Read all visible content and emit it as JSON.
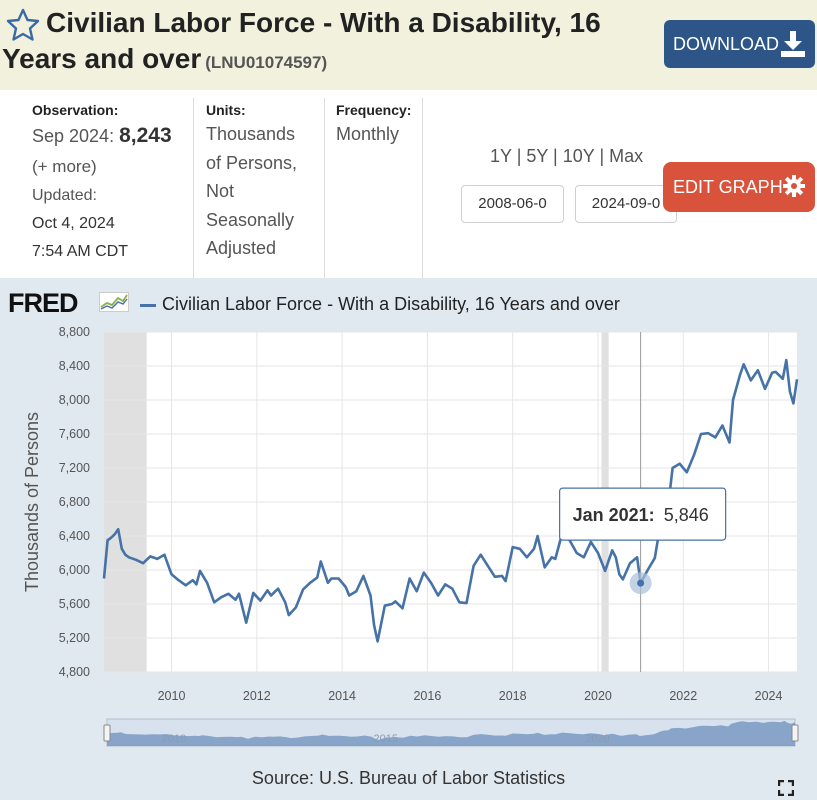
{
  "header": {
    "title_line1": "Civilian Labor Force - With a Disability, 16",
    "title_line2": "Years and over",
    "series_id": "(LNU01074597)",
    "download_label": "DOWNLOAD"
  },
  "meta": {
    "observation_label": "Observation:",
    "observation_date": "Sep 2024:",
    "observation_value": "8,243",
    "more_label": "(+ more)",
    "updated_label": "Updated:",
    "updated_date": "Oct 4, 2024",
    "updated_time": "7:54 AM CDT",
    "units_label": "Units:",
    "units_l1": "Thousands",
    "units_l2": "of Persons,",
    "units_l3": "Not",
    "units_l4": "Seasonally",
    "units_l5": "Adjusted",
    "frequency_label": "Frequency:",
    "frequency_value": "Monthly",
    "range_links": "1Y | 5Y | 10Y | Max",
    "start_date": "2008-06-0",
    "end_date": "2024-09-0",
    "edit_graph_label": "EDIT GRAPH"
  },
  "chart": {
    "logo": "FRED",
    "source": "Source: U.S. Bureau of Labor Statistics",
    "tooltip_date": "Jan 2021:",
    "tooltip_value": "5,846"
  },
  "colors": {
    "line": "#4572a7",
    "recession": "#e0e0e0",
    "header_bg": "#f1f1de",
    "download_bg": "#2e5587",
    "edit_bg": "#d9533c"
  },
  "chart_data": {
    "type": "line",
    "title": "Civilian Labor Force - With a Disability, 16 Years and over",
    "ylabel": "Thousands of Persons",
    "xlabel": "",
    "ylim": [
      4800,
      8800
    ],
    "yticks": [
      4800,
      5200,
      5600,
      6000,
      6400,
      6800,
      7200,
      7600,
      8000,
      8400,
      8800
    ],
    "ytick_labels": [
      "4,800",
      "5,200",
      "5,600",
      "6,000",
      "6,400",
      "6,800",
      "7,200",
      "7,600",
      "8,000",
      "8,400",
      "8,800"
    ],
    "xlim": [
      "2008-06",
      "2024-09"
    ],
    "xticks": [
      2010,
      2012,
      2014,
      2016,
      2018,
      2020,
      2022,
      2024
    ],
    "recessions": [
      [
        "2008-06",
        "2009-06"
      ],
      [
        "2020-02",
        "2020-04"
      ]
    ],
    "highlight": {
      "x": "2021-01",
      "y": 5846
    },
    "series": [
      {
        "name": "Civilian Labor Force - With a Disability, 16 Years and over",
        "points": [
          [
            "2008-06",
            5900
          ],
          [
            "2008-07",
            6350
          ],
          [
            "2008-08",
            6380
          ],
          [
            "2008-09",
            6420
          ],
          [
            "2008-10",
            6480
          ],
          [
            "2008-11",
            6250
          ],
          [
            "2008-12",
            6180
          ],
          [
            "2009-01",
            6150
          ],
          [
            "2009-03",
            6120
          ],
          [
            "2009-05",
            6080
          ],
          [
            "2009-07",
            6160
          ],
          [
            "2009-09",
            6130
          ],
          [
            "2009-11",
            6180
          ],
          [
            "2010-01",
            5950
          ],
          [
            "2010-03",
            5880
          ],
          [
            "2010-05",
            5820
          ],
          [
            "2010-07",
            5880
          ],
          [
            "2010-08",
            5830
          ],
          [
            "2010-09",
            5990
          ],
          [
            "2010-11",
            5850
          ],
          [
            "2011-01",
            5620
          ],
          [
            "2011-03",
            5680
          ],
          [
            "2011-05",
            5720
          ],
          [
            "2011-07",
            5650
          ],
          [
            "2011-08",
            5720
          ],
          [
            "2011-10",
            5380
          ],
          [
            "2011-12",
            5730
          ],
          [
            "2012-02",
            5640
          ],
          [
            "2012-04",
            5760
          ],
          [
            "2012-05",
            5700
          ],
          [
            "2012-07",
            5780
          ],
          [
            "2012-09",
            5620
          ],
          [
            "2012-10",
            5470
          ],
          [
            "2012-12",
            5560
          ],
          [
            "2013-02",
            5770
          ],
          [
            "2013-04",
            5850
          ],
          [
            "2013-06",
            5910
          ],
          [
            "2013-07",
            6100
          ],
          [
            "2013-09",
            5850
          ],
          [
            "2013-10",
            5900
          ],
          [
            "2013-12",
            5900
          ],
          [
            "2014-02",
            5800
          ],
          [
            "2014-03",
            5700
          ],
          [
            "2014-05",
            5750
          ],
          [
            "2014-07",
            5930
          ],
          [
            "2014-09",
            5700
          ],
          [
            "2014-10",
            5350
          ],
          [
            "2014-11",
            5160
          ],
          [
            "2015-01",
            5580
          ],
          [
            "2015-03",
            5600
          ],
          [
            "2015-04",
            5630
          ],
          [
            "2015-06",
            5550
          ],
          [
            "2015-08",
            5900
          ],
          [
            "2015-10",
            5750
          ],
          [
            "2015-12",
            5970
          ],
          [
            "2016-02",
            5850
          ],
          [
            "2016-04",
            5700
          ],
          [
            "2016-06",
            5830
          ],
          [
            "2016-08",
            5780
          ],
          [
            "2016-10",
            5620
          ],
          [
            "2016-12",
            5610
          ],
          [
            "2017-02",
            6050
          ],
          [
            "2017-04",
            6180
          ],
          [
            "2017-06",
            6050
          ],
          [
            "2017-08",
            5920
          ],
          [
            "2017-10",
            5930
          ],
          [
            "2017-11",
            5870
          ],
          [
            "2018-01",
            6270
          ],
          [
            "2018-03",
            6250
          ],
          [
            "2018-05",
            6150
          ],
          [
            "2018-07",
            6250
          ],
          [
            "2018-08",
            6400
          ],
          [
            "2018-10",
            6030
          ],
          [
            "2018-12",
            6150
          ],
          [
            "2019-01",
            6130
          ],
          [
            "2019-03",
            6440
          ],
          [
            "2019-05",
            6350
          ],
          [
            "2019-07",
            6200
          ],
          [
            "2019-09",
            6150
          ],
          [
            "2019-11",
            6330
          ],
          [
            "2020-01",
            6200
          ],
          [
            "2020-03",
            5990
          ],
          [
            "2020-05",
            6230
          ],
          [
            "2020-06",
            6150
          ],
          [
            "2020-07",
            5950
          ],
          [
            "2020-08",
            5890
          ],
          [
            "2020-10",
            6080
          ],
          [
            "2020-12",
            6150
          ],
          [
            "2021-01",
            5846
          ],
          [
            "2021-03",
            6000
          ],
          [
            "2021-05",
            6140
          ],
          [
            "2021-07",
            6650
          ],
          [
            "2021-08",
            6800
          ],
          [
            "2021-09",
            6850
          ],
          [
            "2021-10",
            7200
          ],
          [
            "2021-12",
            7250
          ],
          [
            "2022-02",
            7150
          ],
          [
            "2022-04",
            7350
          ],
          [
            "2022-06",
            7600
          ],
          [
            "2022-08",
            7610
          ],
          [
            "2022-10",
            7560
          ],
          [
            "2022-12",
            7700
          ],
          [
            "2023-02",
            7500
          ],
          [
            "2023-03",
            8000
          ],
          [
            "2023-05",
            8300
          ],
          [
            "2023-06",
            8420
          ],
          [
            "2023-08",
            8230
          ],
          [
            "2023-10",
            8350
          ],
          [
            "2023-12",
            8130
          ],
          [
            "2024-02",
            8320
          ],
          [
            "2024-03",
            8330
          ],
          [
            "2024-05",
            8250
          ],
          [
            "2024-06",
            8470
          ],
          [
            "2024-07",
            8100
          ],
          [
            "2024-08",
            7960
          ],
          [
            "2024-09",
            8243
          ]
        ]
      }
    ]
  }
}
